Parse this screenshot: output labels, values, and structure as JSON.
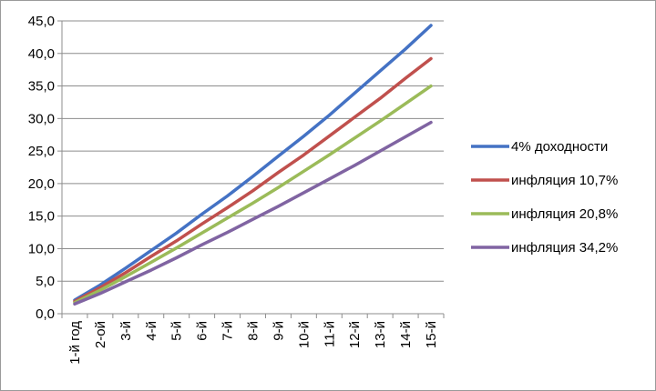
{
  "chart_data": {
    "type": "line",
    "title": "",
    "xlabel": "",
    "ylabel": "",
    "categories": [
      "1-й год",
      "2-ой",
      "3-й",
      "4-й",
      "5-й",
      "6-й",
      "7-й",
      "8-й",
      "9-й",
      "10-й",
      "11-й",
      "12-й",
      "13-й",
      "14-й",
      "15-й"
    ],
    "ylim": [
      0,
      45
    ],
    "yticks": [
      "0,0",
      "5,0",
      "10,0",
      "15,0",
      "20,0",
      "25,0",
      "30,0",
      "35,0",
      "40,0",
      "45,0"
    ],
    "grid": "horizontal",
    "legend_position": "right",
    "series": [
      {
        "name": "4% доходности",
        "color": "#4472C4",
        "values": [
          2.1,
          4.4,
          7.0,
          9.7,
          12.4,
          15.3,
          18.1,
          21.1,
          24.2,
          27.3,
          30.5,
          33.9,
          37.3,
          40.7,
          44.3
        ]
      },
      {
        "name": "инфляция 10,7%",
        "color": "#C0504D",
        "values": [
          1.9,
          4.0,
          6.3,
          8.8,
          11.2,
          13.8,
          16.3,
          18.9,
          21.7,
          24.4,
          27.3,
          30.2,
          33.1,
          36.2,
          39.2
        ]
      },
      {
        "name": "инфляция 20,8%",
        "color": "#9BBB59",
        "values": [
          1.7,
          3.6,
          5.7,
          7.9,
          10.1,
          12.4,
          14.7,
          17.0,
          19.4,
          21.9,
          24.4,
          27.0,
          29.6,
          32.3,
          35.0
        ]
      },
      {
        "name": "инфляция 34,2%",
        "color": "#8064A2",
        "values": [
          1.5,
          3.1,
          4.9,
          6.7,
          8.6,
          10.6,
          12.5,
          14.5,
          16.5,
          18.6,
          20.7,
          22.8,
          25.0,
          27.2,
          29.4
        ]
      }
    ]
  }
}
